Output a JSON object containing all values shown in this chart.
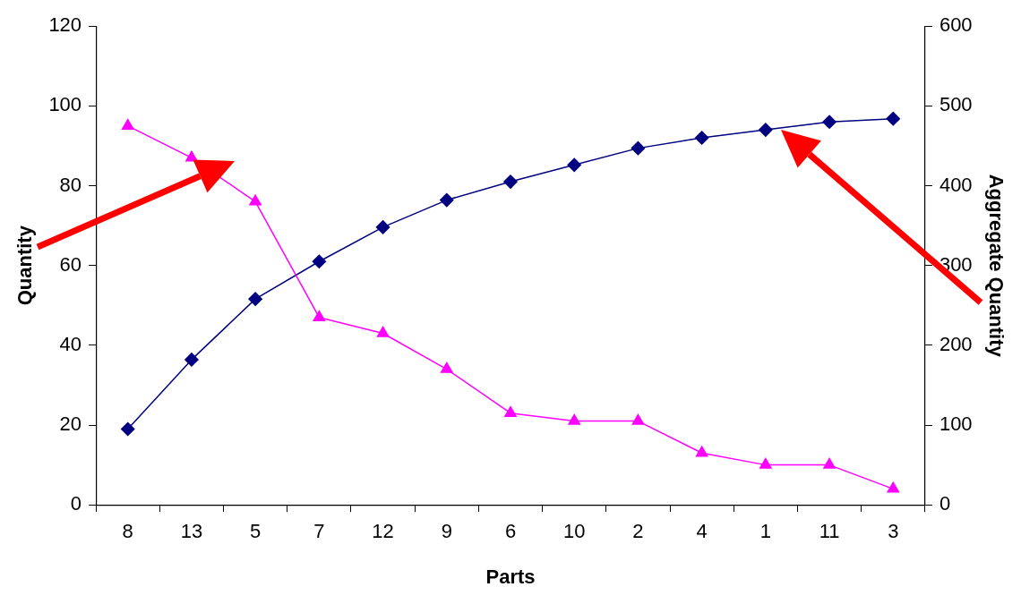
{
  "chart_data": {
    "type": "line",
    "xlabel": "Parts",
    "ylabel": "Quantity",
    "y2label": "Aggregate Quantity",
    "categories": [
      "8",
      "13",
      "5",
      "7",
      "12",
      "9",
      "6",
      "10",
      "2",
      "4",
      "1",
      "11",
      "3"
    ],
    "series": [
      {
        "color": "#ff00ff",
        "marker": "triangle",
        "values": [
          95,
          87,
          76,
          47,
          43,
          34,
          23,
          21,
          21,
          13,
          10,
          10,
          4
        ]
      },
      {
        "color": "#000080",
        "marker": "diamond",
        "axis": "y2",
        "values": [
          95,
          182,
          258,
          305,
          348,
          382,
          405,
          426,
          447,
          460,
          470,
          480,
          484
        ]
      }
    ],
    "ylim": [
      0,
      120
    ],
    "yticks": [
      0,
      20,
      40,
      60,
      80,
      100,
      120
    ],
    "y2lim": [
      0,
      600
    ],
    "y2ticks": [
      0,
      100,
      200,
      300,
      400,
      500,
      600
    ],
    "grid": false,
    "legend": false
  }
}
